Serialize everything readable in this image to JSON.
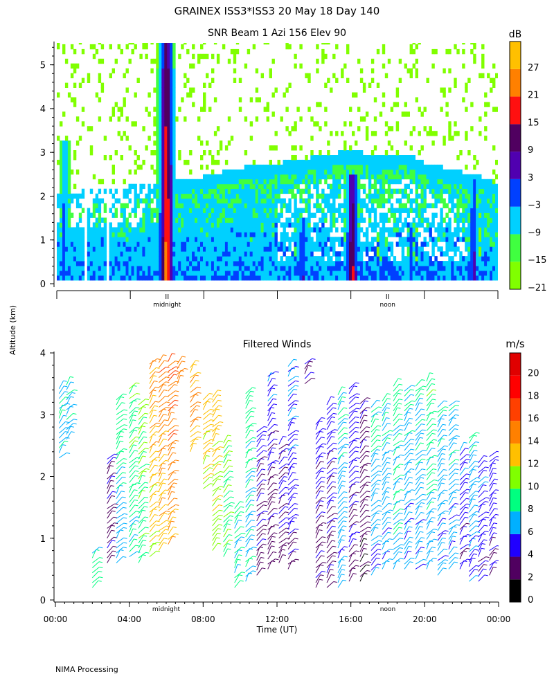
{
  "header": {
    "title": "GRAINEX ISS3*ISS3  20 May 18 Day 140",
    "ylabel_shared": "Altitude (km)",
    "footer": "NIMA Processing"
  },
  "colors": {
    "snr_scale": [
      "#80ff00",
      "#40ff40",
      "#00d0ff",
      "#0040ff",
      "#5000b0",
      "#500060",
      "#ff1010",
      "#ff8000",
      "#ffc000"
    ],
    "wind_scale": [
      "#000000",
      "#500060",
      "#2000ff",
      "#00b0ff",
      "#00ff80",
      "#80ff00",
      "#ffc000",
      "#ff8000",
      "#ff4000",
      "#ff0000",
      "#e00000"
    ]
  },
  "chart_data": [
    {
      "type": "heatmap",
      "title": "SNR Beam 1 Azi 156 Elev 90",
      "ylabel": "Altitude (km)",
      "ylim": [
        0,
        5.5
      ],
      "yticks": [
        "0",
        "1",
        "2",
        "3",
        "4",
        "5"
      ],
      "xlim_hours": [
        0,
        24
      ],
      "time_markers": [
        {
          "label": "midnight",
          "hour": 6
        },
        {
          "label": "noon",
          "hour": 18
        }
      ],
      "colorbar": {
        "unit": "dB",
        "tick_labels": [
          "27",
          "21",
          "15",
          "9",
          "3",
          "−3",
          "−9",
          "−15",
          "−21"
        ],
        "range": [
          -24,
          33
        ]
      },
      "boundary_layer_top_km": [
        [
          0,
          2.0
        ],
        [
          2,
          2.1
        ],
        [
          4,
          2.2
        ],
        [
          6,
          2.3
        ],
        [
          8,
          2.4
        ],
        [
          10,
          2.6
        ],
        [
          12,
          2.7
        ],
        [
          14,
          2.85
        ],
        [
          16,
          3.0
        ],
        [
          17,
          2.9
        ],
        [
          18,
          2.85
        ],
        [
          19,
          2.95
        ],
        [
          20,
          2.7
        ],
        [
          21,
          2.6
        ],
        [
          22,
          2.5
        ],
        [
          23,
          2.4
        ],
        [
          24,
          2.2
        ]
      ]
    },
    {
      "type": "scatter",
      "title": "Filtered Winds",
      "ylabel": "Altitude (km)",
      "xlabel": "Time (UT)",
      "ylim": [
        0,
        4
      ],
      "yticks": [
        "0",
        "1",
        "2",
        "3",
        "4"
      ],
      "xlim_hours": [
        0,
        24
      ],
      "xtick_labels": [
        "00:00",
        "04:00",
        "08:00",
        "12:00",
        "16:00",
        "20:00",
        "00:00"
      ],
      "time_markers": [
        {
          "label": "midnight",
          "hour": 6
        },
        {
          "label": "noon",
          "hour": 18
        }
      ],
      "colorbar": {
        "unit": "m/s",
        "tick_labels": [
          "20",
          "18",
          "16",
          "14",
          "12",
          "10",
          "8",
          "6",
          "4",
          "2",
          "0"
        ],
        "range": [
          0,
          22
        ]
      },
      "wind_columns": [
        {
          "t": 0.2,
          "z0": 2.3,
          "z1": 3.5,
          "speed": 7
        },
        {
          "t": 0.6,
          "z0": 2.6,
          "z1": 3.5,
          "speed": 7
        },
        {
          "t": 2.0,
          "z0": 0.2,
          "z1": 0.8,
          "speed": 8
        },
        {
          "t": 2.8,
          "z0": 0.6,
          "z1": 2.3,
          "speed": 3
        },
        {
          "t": 3.3,
          "z0": 0.6,
          "z1": 3.3,
          "speed": 7
        },
        {
          "t": 4.0,
          "z0": 0.7,
          "z1": 3.5,
          "speed": 8
        },
        {
          "t": 4.5,
          "z0": 0.6,
          "z1": 3.2,
          "speed": 9
        },
        {
          "t": 5.1,
          "z0": 0.7,
          "z1": 3.9,
          "speed": 12
        },
        {
          "t": 5.6,
          "z0": 0.8,
          "z1": 3.9,
          "speed": 13
        },
        {
          "t": 6.1,
          "z0": 0.9,
          "z1": 3.9,
          "speed": 14
        },
        {
          "t": 6.6,
          "z0": 3.5,
          "z1": 3.9,
          "speed": 15
        },
        {
          "t": 7.3,
          "z0": 2.4,
          "z1": 3.8,
          "speed": 13
        },
        {
          "t": 8.0,
          "z0": 1.8,
          "z1": 3.3,
          "speed": 12
        },
        {
          "t": 8.5,
          "z0": 0.8,
          "z1": 3.3,
          "speed": 11
        },
        {
          "t": 9.1,
          "z0": 0.7,
          "z1": 2.6,
          "speed": 9
        },
        {
          "t": 9.7,
          "z0": 0.2,
          "z1": 1.5,
          "speed": 8
        },
        {
          "t": 10.3,
          "z0": 0.3,
          "z1": 3.4,
          "speed": 7
        },
        {
          "t": 10.9,
          "z0": 0.4,
          "z1": 2.8,
          "speed": 3
        },
        {
          "t": 11.5,
          "z0": 0.5,
          "z1": 3.7,
          "speed": 3
        },
        {
          "t": 12.1,
          "z0": 0.6,
          "z1": 2.6,
          "speed": 3
        },
        {
          "t": 12.6,
          "z0": 0.5,
          "z1": 3.8,
          "speed": 4
        },
        {
          "t": 13.5,
          "z0": 3.5,
          "z1": 3.9,
          "speed": 4
        },
        {
          "t": 14.1,
          "z0": 0.2,
          "z1": 2.9,
          "speed": 3
        },
        {
          "t": 14.7,
          "z0": 0.2,
          "z1": 3.2,
          "speed": 3
        },
        {
          "t": 15.3,
          "z0": 0.2,
          "z1": 3.4,
          "speed": 6
        },
        {
          "t": 15.9,
          "z0": 0.3,
          "z1": 3.5,
          "speed": 3
        },
        {
          "t": 16.5,
          "z0": 0.3,
          "z1": 3.2,
          "speed": 2
        },
        {
          "t": 17.1,
          "z0": 0.4,
          "z1": 3.2,
          "speed": 6
        },
        {
          "t": 17.7,
          "z0": 0.5,
          "z1": 3.3,
          "speed": 6
        },
        {
          "t": 18.3,
          "z0": 0.5,
          "z1": 3.5,
          "speed": 7
        },
        {
          "t": 18.9,
          "z0": 0.5,
          "z1": 3.4,
          "speed": 6
        },
        {
          "t": 19.5,
          "z0": 0.5,
          "z1": 3.5,
          "speed": 6
        },
        {
          "t": 20.1,
          "z0": 0.5,
          "z1": 3.6,
          "speed": 7
        },
        {
          "t": 20.7,
          "z0": 0.4,
          "z1": 3.2,
          "speed": 6
        },
        {
          "t": 21.3,
          "z0": 0.5,
          "z1": 3.2,
          "speed": 6
        },
        {
          "t": 21.9,
          "z0": 0.5,
          "z1": 2.5,
          "speed": 4
        },
        {
          "t": 22.4,
          "z0": 0.3,
          "z1": 2.7,
          "speed": 6
        },
        {
          "t": 22.9,
          "z0": 0.3,
          "z1": 2.3,
          "speed": 4
        },
        {
          "t": 23.5,
          "z0": 0.4,
          "z1": 2.4,
          "speed": 4
        }
      ]
    }
  ]
}
